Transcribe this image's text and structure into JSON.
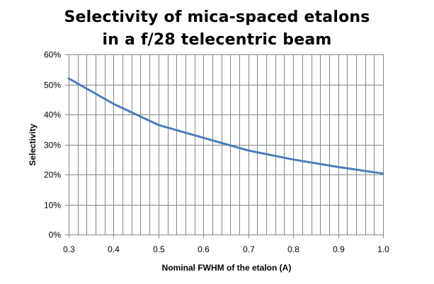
{
  "chart_data": {
    "type": "line",
    "title_lines": [
      "Selectivity of mica-spaced etalons",
      "in a f/28 telecentric beam"
    ],
    "xlabel": "Nominal FWHM of the etalon (A)",
    "ylabel": "Selectivity",
    "xlim": [
      0.3,
      1.0
    ],
    "ylim": [
      0,
      0.6
    ],
    "x_ticks": [
      0.3,
      0.4,
      0.5,
      0.6,
      0.7,
      0.8,
      0.9,
      1.0
    ],
    "x_tick_labels": [
      "0.3",
      "0.4",
      "0.5",
      "0.6",
      "0.7",
      "0.8",
      "0.9",
      "1.0"
    ],
    "y_ticks": [
      0,
      0.1,
      0.2,
      0.3,
      0.4,
      0.5,
      0.6
    ],
    "y_tick_labels": [
      "0%",
      "10%",
      "20%",
      "30%",
      "40%",
      "50%",
      "60%"
    ],
    "x_minor_step": 0.02,
    "grid": true,
    "legend": "none",
    "series": [
      {
        "color": "#4a7ebb",
        "x": [
          0.3,
          0.4,
          0.5,
          0.6,
          0.7,
          0.8,
          0.9,
          1.0
        ],
        "y": [
          0.52,
          0.435,
          0.365,
          0.322,
          0.28,
          0.25,
          0.225,
          0.203
        ]
      }
    ],
    "colors": {
      "grid": "#868686",
      "axis": "#868686",
      "line": "#4a7ebb"
    }
  }
}
